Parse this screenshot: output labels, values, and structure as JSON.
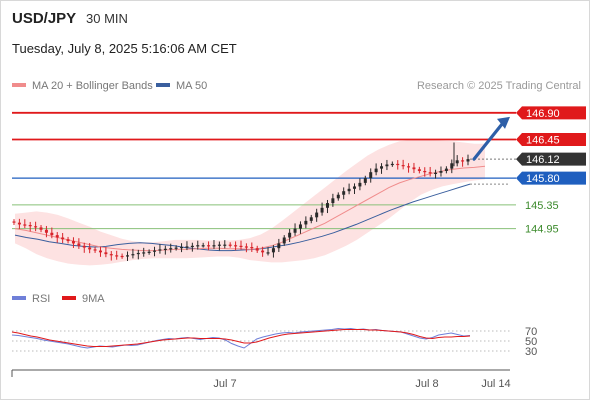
{
  "header": {
    "symbol": "USD/JPY",
    "interval": "30 MIN",
    "datetime": "Tuesday, July 8, 2025 5:16:06 AM CET",
    "credit": "Research © 2025 Trading Central"
  },
  "legend": {
    "ma20_label": "MA 20 + Bollinger Bands",
    "ma50_label": "MA 50",
    "rsi_label": "RSI",
    "ma9_label": "9MA"
  },
  "colors": {
    "resistance": "#e0191b",
    "support": "#88c078",
    "current": "#333333",
    "pivot": "#1f5fbf",
    "candle_up": "#2a2a2a",
    "candle_down": "#d8232a",
    "ma20": "#f08c8c",
    "ma50": "#3a5f9e",
    "bollinger_fill": "#fde2e2",
    "rsi": "#6f7fd8",
    "rsi_ma9": "#e0191b",
    "arrow": "#2e5fa8"
  },
  "chart_data": {
    "type": "candlestick",
    "title": "USD/JPY",
    "interval": "30 MIN",
    "y_range": [
      144.0,
      147.2
    ],
    "x_ticks": [
      "Jul 7",
      "Jul 8",
      "Jul 14"
    ],
    "price_levels": [
      {
        "value": 146.9,
        "label": "146.90",
        "kind": "resistance"
      },
      {
        "value": 146.45,
        "label": "146.45",
        "kind": "resistance"
      },
      {
        "value": 146.12,
        "label": "146.12",
        "kind": "current"
      },
      {
        "value": 145.8,
        "label": "145.80",
        "kind": "pivot"
      },
      {
        "value": 145.35,
        "label": "145.35",
        "kind": "support"
      },
      {
        "value": 144.95,
        "label": "144.95",
        "kind": "support"
      }
    ],
    "projection": {
      "from": 146.12,
      "to": 146.9,
      "direction": "up"
    },
    "close_series": [
      145.05,
      145.02,
      145.01,
      144.99,
      144.97,
      144.93,
      144.88,
      144.84,
      144.8,
      144.77,
      144.74,
      144.7,
      144.66,
      144.63,
      144.6,
      144.58,
      144.55,
      144.52,
      144.5,
      144.49,
      144.48,
      144.5,
      144.52,
      144.54,
      144.55,
      144.56,
      144.58,
      144.6,
      144.61,
      144.62,
      144.63,
      144.64,
      144.65,
      144.66,
      144.67,
      144.67,
      144.66,
      144.67,
      144.68,
      144.68,
      144.67,
      144.66,
      144.65,
      144.64,
      144.62,
      144.58,
      144.55,
      144.55,
      144.62,
      144.7,
      144.8,
      144.88,
      144.95,
      145.02,
      145.08,
      145.14,
      145.22,
      145.3,
      145.38,
      145.46,
      145.52,
      145.58,
      145.62,
      145.66,
      145.72,
      145.8,
      145.9,
      145.96,
      146.0,
      146.03,
      146.04,
      146.02,
      146.0,
      145.98,
      145.95,
      145.92,
      145.9,
      145.88,
      145.89,
      145.92,
      145.96,
      146.05,
      146.1,
      146.08,
      146.12
    ],
    "ma20": [
      144.95,
      144.92,
      144.88,
      144.84,
      144.8,
      144.76,
      144.72,
      144.68,
      144.64,
      144.62,
      144.6,
      144.59,
      144.58,
      144.58,
      144.59,
      144.6,
      144.6,
      144.61,
      144.62,
      144.62,
      144.61,
      144.61,
      144.6,
      144.62,
      144.66,
      144.72,
      144.8,
      144.88,
      144.96,
      145.04,
      145.14,
      145.24,
      145.34,
      145.44,
      145.54,
      145.64,
      145.72,
      145.78,
      145.83,
      145.88,
      145.92,
      145.95,
      145.97,
      145.98,
      146.0
    ],
    "bollinger_upper": [
      145.2,
      145.22,
      145.24,
      145.22,
      145.18,
      145.12,
      145.05,
      144.98,
      144.9,
      144.84,
      144.78,
      144.74,
      144.72,
      144.72,
      144.74,
      144.76,
      144.76,
      144.76,
      144.75,
      144.75,
      144.75,
      144.76,
      144.79,
      144.85,
      144.95,
      145.08,
      145.22,
      145.36,
      145.5,
      145.64,
      145.78,
      145.92,
      146.05,
      146.18,
      146.28,
      146.36,
      146.42,
      146.44,
      146.45,
      146.44,
      146.43,
      146.42,
      146.4,
      146.38,
      146.38
    ],
    "bollinger_lower": [
      144.7,
      144.62,
      144.52,
      144.45,
      144.4,
      144.36,
      144.34,
      144.33,
      144.34,
      144.36,
      144.39,
      144.42,
      144.44,
      144.45,
      144.45,
      144.45,
      144.45,
      144.46,
      144.47,
      144.48,
      144.48,
      144.46,
      144.42,
      144.4,
      144.38,
      144.38,
      144.4,
      144.42,
      144.45,
      144.5,
      144.58,
      144.66,
      144.76,
      144.88,
      145.0,
      145.12,
      145.26,
      145.4,
      145.52,
      145.6,
      145.66,
      145.7,
      145.73,
      145.76,
      145.78
    ],
    "ma50": [
      144.84,
      144.8,
      144.77,
      144.73,
      144.7,
      144.67,
      144.65,
      144.64,
      144.65,
      144.68,
      144.7,
      144.71,
      144.7,
      144.68,
      144.66,
      144.63,
      144.61,
      144.59,
      144.58,
      144.58,
      144.59,
      144.6,
      144.62,
      144.65,
      144.68,
      144.72,
      144.77,
      144.82,
      144.88,
      144.95,
      145.02,
      145.1,
      145.18,
      145.26,
      145.33,
      145.4,
      145.46,
      145.52,
      145.58,
      145.64,
      145.7
    ],
    "rsi": {
      "levels": [
        30,
        50,
        70
      ],
      "rsi_values": [
        62,
        61,
        59,
        57,
        55,
        52,
        50,
        48,
        46,
        44,
        41,
        38,
        36,
        38,
        40,
        39,
        38,
        40,
        42,
        41,
        42,
        45,
        48,
        51,
        53,
        55,
        54,
        56,
        57,
        55,
        53,
        55,
        57,
        56,
        52,
        45,
        40,
        36,
        45,
        54,
        58,
        61,
        64,
        66,
        67,
        66,
        68,
        69,
        70,
        71,
        72,
        73,
        75,
        74,
        75,
        73,
        74,
        72,
        73,
        71,
        70,
        69,
        68,
        64,
        60,
        56,
        54,
        57,
        62,
        64,
        66,
        63,
        60,
        61
      ],
      "ma9_values": [
        68,
        66,
        63,
        60,
        58,
        55,
        52,
        50,
        48,
        46,
        44,
        42,
        40,
        39,
        39,
        39,
        40,
        41,
        42,
        43,
        44,
        46,
        48,
        50,
        52,
        53,
        54,
        55,
        56,
        56,
        55,
        55,
        55,
        55,
        54,
        52,
        49,
        46,
        46,
        48,
        52,
        56,
        59,
        62,
        64,
        65,
        66,
        67,
        68,
        69,
        70,
        71,
        72,
        73,
        73,
        73,
        73,
        72,
        72,
        71,
        70,
        69,
        68,
        66,
        63,
        59,
        56,
        55,
        57,
        58,
        58,
        59,
        59,
        60
      ]
    }
  }
}
